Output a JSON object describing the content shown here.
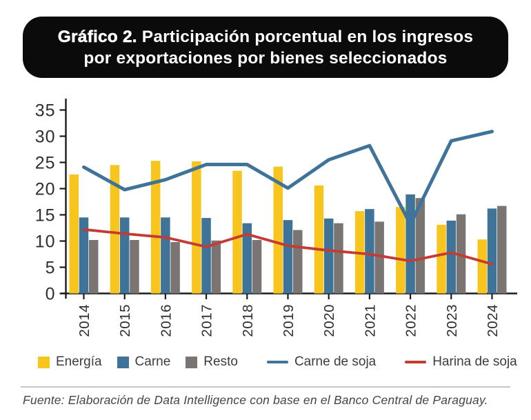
{
  "title": {
    "prefix": "Gráfico 2.",
    "line1": "Participación porcentual en los ingresos",
    "line2": "por exportaciones por bienes seleccionados"
  },
  "source": "Fuente: Elaboración de Data Intelligence con base en el Banco Central de Paraguay.",
  "colors": {
    "title_bg": "#0b0b0b",
    "title_text": "#ffffff",
    "axis": "#1b1b1b",
    "axis_text": "#2e2e2e",
    "divider": "#c6c6c6",
    "source_text": "#454545"
  },
  "chart_data": {
    "type": "bar",
    "subtype": "grouped-bars-with-lines",
    "categories": [
      "2014",
      "2015",
      "2016",
      "2017",
      "2018",
      "2019",
      "2020",
      "2021",
      "2022",
      "2023",
      "2024"
    ],
    "series": [
      {
        "name": "Energía",
        "type": "bar",
        "color": "#F7C51D",
        "values": [
          22.7,
          24.5,
          25.3,
          25.2,
          23.4,
          24.2,
          20.6,
          15.7,
          16.5,
          13.1,
          10.3
        ]
      },
      {
        "name": "Carne",
        "type": "bar",
        "color": "#3F7397",
        "values": [
          14.5,
          14.5,
          14.5,
          14.4,
          13.4,
          14.0,
          14.3,
          16.1,
          18.9,
          13.9,
          16.2
        ]
      },
      {
        "name": "Resto",
        "type": "bar",
        "color": "#7A7472",
        "values": [
          10.2,
          10.2,
          9.8,
          10.1,
          10.2,
          12.1,
          13.4,
          13.7,
          18.2,
          15.1,
          16.7
        ]
      },
      {
        "name": "Carne de soja",
        "type": "line",
        "color": "#40739A",
        "values": [
          24.1,
          19.8,
          21.7,
          24.6,
          24.6,
          20.1,
          25.5,
          28.2,
          13.2,
          29.1,
          30.9
        ]
      },
      {
        "name": "Harina de soja",
        "type": "line",
        "color": "#C33B32",
        "values": [
          12.2,
          11.4,
          10.7,
          8.9,
          11.3,
          9.1,
          8.2,
          7.5,
          6.2,
          7.8,
          5.6
        ]
      }
    ],
    "title": "Gráfico 2. Participación porcentual en los ingresos por exportaciones por bienes seleccionados",
    "xlabel": "",
    "ylabel": "",
    "ylim": [
      0,
      35
    ],
    "yticks": [
      0,
      5,
      10,
      15,
      20,
      25,
      30,
      35
    ],
    "grid": false,
    "legend_position": "bottom"
  }
}
